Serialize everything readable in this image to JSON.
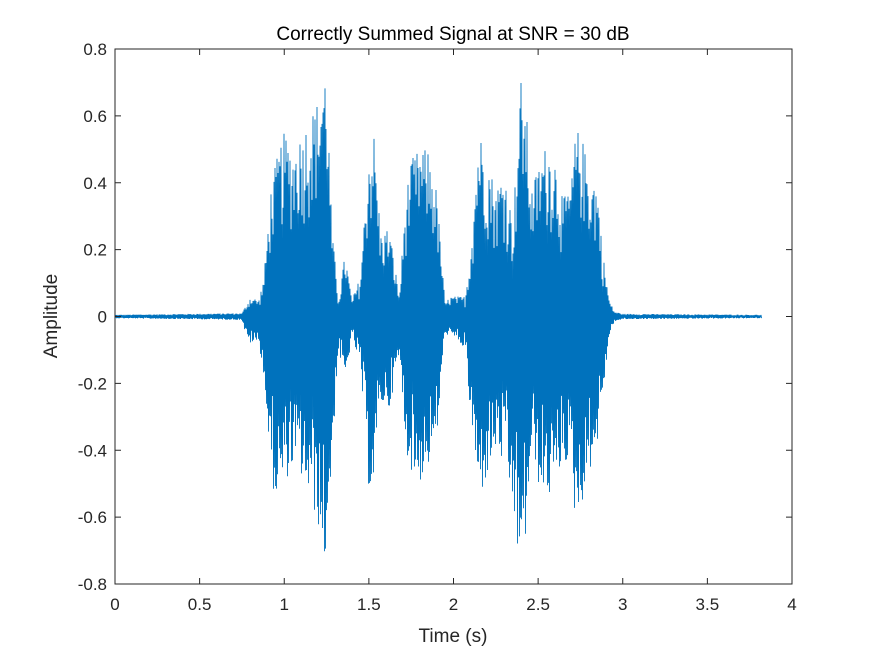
{
  "chart_data": {
    "type": "line",
    "title": "Correctly Summed Signal at SNR = 30 dB",
    "xlabel": "Time (s)",
    "ylabel": "Amplitude",
    "xlim": [
      0,
      4
    ],
    "ylim": [
      -0.8,
      0.8
    ],
    "x_ticks": [
      "0",
      "0.5",
      "1",
      "1.5",
      "2",
      "2.5",
      "3",
      "3.5",
      "4"
    ],
    "y_ticks": [
      "-0.8",
      "-0.6",
      "-0.4",
      "-0.2",
      "0",
      "0.2",
      "0.4",
      "0.6",
      "0.8"
    ],
    "grid": false,
    "legend": "none",
    "series": [
      {
        "color": "#0072BD",
        "x_range": [
          0,
          3.82
        ],
        "envelope": {
          "t": [
            0,
            0.75,
            0.78,
            0.8,
            0.85,
            0.88,
            0.92,
            0.95,
            0.98,
            1.0,
            1.05,
            1.1,
            1.15,
            1.2,
            1.23,
            1.25,
            1.28,
            1.32,
            1.36,
            1.4,
            1.45,
            1.5,
            1.53,
            1.57,
            1.62,
            1.68,
            1.72,
            1.76,
            1.8,
            1.85,
            1.9,
            1.95,
            1.98,
            2.02,
            2.07,
            2.1,
            2.15,
            2.2,
            2.25,
            2.3,
            2.35,
            2.4,
            2.43,
            2.46,
            2.5,
            2.55,
            2.6,
            2.65,
            2.7,
            2.72,
            2.75,
            2.8,
            2.85,
            2.88,
            2.92,
            2.95,
            3.0,
            3.82
          ],
          "upper": [
            0.005,
            0.01,
            0.04,
            0.06,
            0.05,
            0.12,
            0.38,
            0.46,
            0.52,
            0.55,
            0.5,
            0.55,
            0.6,
            0.65,
            0.74,
            0.75,
            0.28,
            0.05,
            0.19,
            0.05,
            0.12,
            0.5,
            0.55,
            0.25,
            0.27,
            0.06,
            0.38,
            0.48,
            0.5,
            0.5,
            0.38,
            0.04,
            0.06,
            0.06,
            0.06,
            0.2,
            0.56,
            0.48,
            0.38,
            0.45,
            0.28,
            0.72,
            0.62,
            0.38,
            0.45,
            0.52,
            0.48,
            0.35,
            0.42,
            0.55,
            0.56,
            0.44,
            0.4,
            0.2,
            0.05,
            0.015,
            0.008,
            0.005
          ],
          "lower": [
            -0.005,
            -0.01,
            -0.07,
            -0.08,
            -0.08,
            -0.18,
            -0.48,
            -0.55,
            -0.52,
            -0.5,
            -0.45,
            -0.48,
            -0.55,
            -0.62,
            -0.74,
            -0.72,
            -0.45,
            -0.1,
            -0.2,
            -0.06,
            -0.15,
            -0.52,
            -0.5,
            -0.26,
            -0.28,
            -0.12,
            -0.4,
            -0.48,
            -0.5,
            -0.45,
            -0.38,
            -0.05,
            -0.06,
            -0.07,
            -0.1,
            -0.3,
            -0.55,
            -0.48,
            -0.4,
            -0.45,
            -0.58,
            -0.8,
            -0.65,
            -0.4,
            -0.5,
            -0.55,
            -0.52,
            -0.42,
            -0.48,
            -0.62,
            -0.58,
            -0.47,
            -0.38,
            -0.25,
            -0.06,
            -0.015,
            -0.008,
            -0.005
          ]
        }
      }
    ]
  }
}
